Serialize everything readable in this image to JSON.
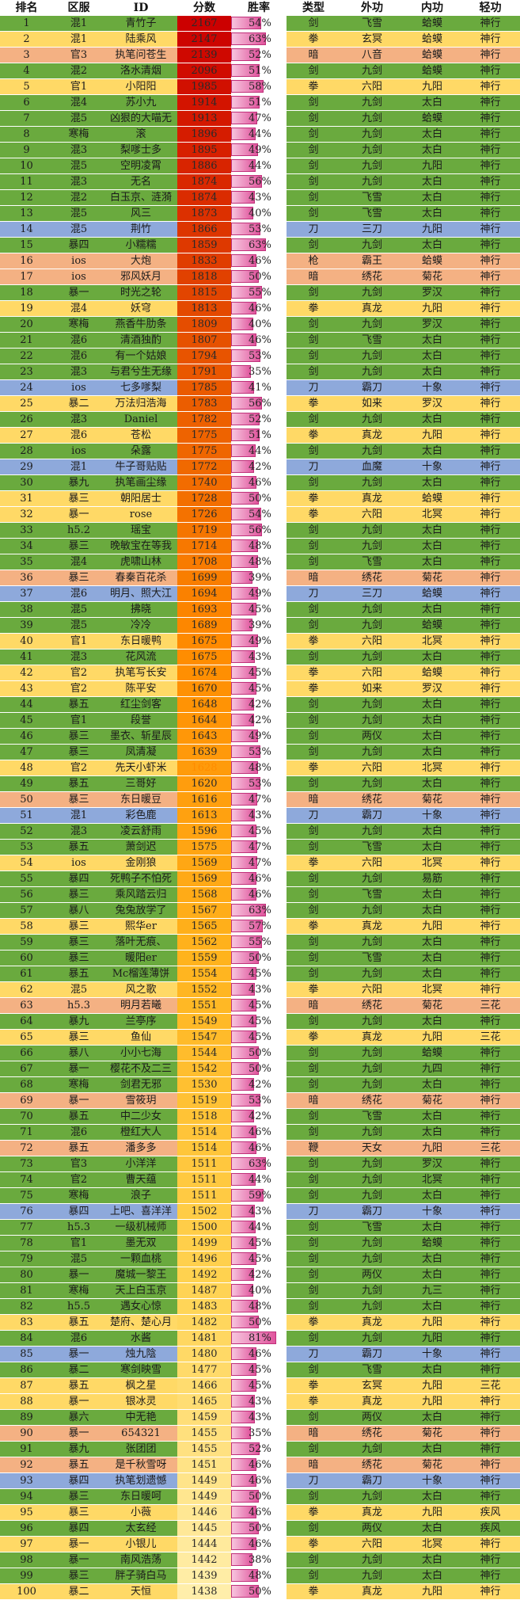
{
  "headers": [
    "排名",
    "区服",
    "ID",
    "分数",
    "胜率",
    "类型",
    "外功",
    "内功",
    "轻功"
  ],
  "rows": [
    [
      "1",
      "混1",
      "青竹子",
      "2167",
      "54%",
      "剑",
      "飞雪",
      "蛤蟆",
      "神行",
      "g"
    ],
    [
      "2",
      "混1",
      "陆乘风",
      "2147",
      "63%",
      "拳",
      "玄冥",
      "蛤蟆",
      "神行",
      "y"
    ],
    [
      "3",
      "官3",
      "执笔问苍生",
      "2139",
      "52%",
      "暗",
      "八音",
      "蛤蟆",
      "神行",
      "s"
    ],
    [
      "4",
      "混2",
      "洛水清烟",
      "2096",
      "51%",
      "剑",
      "九剑",
      "蛤蟆",
      "神行",
      "g"
    ],
    [
      "5",
      "官1",
      "小阳阳",
      "1985",
      "58%",
      "拳",
      "六阳",
      "九阳",
      "神行",
      "y"
    ],
    [
      "6",
      "混4",
      "苏小九",
      "1914",
      "51%",
      "剑",
      "九剑",
      "太白",
      "神行",
      "g"
    ],
    [
      "7",
      "混5",
      "凶狠的大喵无",
      "1913",
      "47%",
      "剑",
      "九剑",
      "蛤蟆",
      "神行",
      "g"
    ],
    [
      "8",
      "寒梅",
      "滚",
      "1896",
      "44%",
      "剑",
      "九剑",
      "太白",
      "神行",
      "g"
    ],
    [
      "9",
      "混3",
      "梨嗲士多",
      "1895",
      "49%",
      "剑",
      "九剑",
      "太白",
      "神行",
      "g"
    ],
    [
      "10",
      "混5",
      "空明凌霄",
      "1886",
      "44%",
      "剑",
      "九剑",
      "九阳",
      "神行",
      "g"
    ],
    [
      "11",
      "混3",
      "无名",
      "1874",
      "56%",
      "剑",
      "九剑",
      "太白",
      "神行",
      "g"
    ],
    [
      "12",
      "混2",
      "白玉京、涟漪",
      "1874",
      "43%",
      "剑",
      "飞雪",
      "太白",
      "神行",
      "g"
    ],
    [
      "13",
      "混5",
      "风三",
      "1873",
      "40%",
      "剑",
      "飞雪",
      "太白",
      "神行",
      "g"
    ],
    [
      "14",
      "混5",
      "荆竹",
      "1866",
      "53%",
      "刀",
      "三刀",
      "九阳",
      "神行",
      "b"
    ],
    [
      "15",
      "暴四",
      "小糯糯",
      "1859",
      "63%",
      "剑",
      "九剑",
      "太白",
      "神行",
      "g"
    ],
    [
      "16",
      "ios",
      "大炮",
      "1833",
      "46%",
      "枪",
      "霸王",
      "蛤蟆",
      "神行",
      "s"
    ],
    [
      "17",
      "ios",
      "邪风妖月",
      "1818",
      "50%",
      "暗",
      "绣花",
      "菊花",
      "神行",
      "s"
    ],
    [
      "18",
      "暴一",
      "时光之轮",
      "1815",
      "55%",
      "剑",
      "九剑",
      "罗汉",
      "神行",
      "g"
    ],
    [
      "19",
      "混4",
      "妖穹",
      "1813",
      "46%",
      "拳",
      "真龙",
      "九阳",
      "神行",
      "y"
    ],
    [
      "20",
      "寒梅",
      "燕香牛肋条",
      "1809",
      "40%",
      "剑",
      "九剑",
      "罗汉",
      "神行",
      "g"
    ],
    [
      "21",
      "混6",
      "清酒独酌",
      "1807",
      "46%",
      "剑",
      "飞雪",
      "太白",
      "神行",
      "g"
    ],
    [
      "22",
      "混6",
      "有一个姑娘",
      "1794",
      "53%",
      "剑",
      "九剑",
      "太白",
      "神行",
      "g"
    ],
    [
      "23",
      "混3",
      "与君兮生无缘",
      "1791",
      "35%",
      "剑",
      "九剑",
      "太白",
      "神行",
      "g"
    ],
    [
      "24",
      "ios",
      "七多嗲梨",
      "1785",
      "41%",
      "刀",
      "霸刀",
      "十象",
      "神行",
      "b"
    ],
    [
      "25",
      "暴二",
      "万法归浩海",
      "1783",
      "56%",
      "拳",
      "如来",
      "罗汉",
      "神行",
      "y"
    ],
    [
      "26",
      "混3",
      "Daniel",
      "1782",
      "52%",
      "剑",
      "九剑",
      "太白",
      "神行",
      "g"
    ],
    [
      "27",
      "混6",
      "苍松",
      "1775",
      "51%",
      "拳",
      "真龙",
      "九阳",
      "神行",
      "y"
    ],
    [
      "28",
      "ios",
      "朵露",
      "1775",
      "44%",
      "剑",
      "九剑",
      "太白",
      "神行",
      "g"
    ],
    [
      "29",
      "混1",
      "牛子哥贴贴",
      "1772",
      "42%",
      "刀",
      "血魔",
      "十象",
      "神行",
      "b"
    ],
    [
      "30",
      "暴九",
      "执笔画尘缘",
      "1740",
      "46%",
      "剑",
      "九剑",
      "太白",
      "神行",
      "g"
    ],
    [
      "31",
      "暴三",
      "朝阳居士",
      "1728",
      "50%",
      "拳",
      "真龙",
      "蛤蟆",
      "神行",
      "y"
    ],
    [
      "32",
      "暴一",
      "rose",
      "1726",
      "54%",
      "拳",
      "六阳",
      "北冥",
      "神行",
      "y"
    ],
    [
      "33",
      "h5.2",
      "瑶宝",
      "1719",
      "56%",
      "剑",
      "九剑",
      "太白",
      "神行",
      "g"
    ],
    [
      "34",
      "暴三",
      "晚敏宝在等我",
      "1714",
      "48%",
      "剑",
      "九剑",
      "太白",
      "神行",
      "g"
    ],
    [
      "35",
      "混4",
      "虎啸山林",
      "1708",
      "48%",
      "剑",
      "飞雪",
      "太白",
      "神行",
      "g"
    ],
    [
      "36",
      "暴三",
      "春秦百花杀",
      "1699",
      "39%",
      "暗",
      "绣花",
      "菊花",
      "神行",
      "s"
    ],
    [
      "37",
      "混6",
      "明月、照大江",
      "1694",
      "49%",
      "刀",
      "三刀",
      "蛤蟆",
      "神行",
      "b"
    ],
    [
      "38",
      "混5",
      "拂晓",
      "1693",
      "45%",
      "剑",
      "九剑",
      "太白",
      "神行",
      "g"
    ],
    [
      "39",
      "混5",
      "冷冷",
      "1689",
      "39%",
      "剑",
      "九剑",
      "蛤蟆",
      "神行",
      "g"
    ],
    [
      "40",
      "官1",
      "东日暖鸭",
      "1675",
      "49%",
      "拳",
      "六阳",
      "北冥",
      "神行",
      "y"
    ],
    [
      "41",
      "混3",
      "花风流",
      "1675",
      "43%",
      "剑",
      "九剑",
      "太白",
      "神行",
      "g"
    ],
    [
      "42",
      "官2",
      "执笔写长安",
      "1674",
      "45%",
      "拳",
      "六阳",
      "蛤蟆",
      "神行",
      "y"
    ],
    [
      "43",
      "官2",
      "陈平安",
      "1670",
      "45%",
      "拳",
      "如来",
      "罗汉",
      "神行",
      "y"
    ],
    [
      "44",
      "暴五",
      "红尘剑客",
      "1648",
      "42%",
      "剑",
      "九剑",
      "太白",
      "神行",
      "g"
    ],
    [
      "45",
      "官1",
      "段誉",
      "1644",
      "42%",
      "剑",
      "九剑",
      "太白",
      "神行",
      "g"
    ],
    [
      "46",
      "暴三",
      "墨衣、斩星辰",
      "1643",
      "49%",
      "剑",
      "两仪",
      "太白",
      "神行",
      "g"
    ],
    [
      "47",
      "暴三",
      "凤清凝",
      "1639",
      "53%",
      "剑",
      "九剑",
      "太白",
      "神行",
      "g"
    ],
    [
      "48",
      "官2",
      "先天小虾米",
      "1628",
      "48%",
      "拳",
      "六阳",
      "北冥",
      "神行",
      "y"
    ],
    [
      "49",
      "暴五",
      "三哥好",
      "1620",
      "53%",
      "剑",
      "九剑",
      "太白",
      "神行",
      "g"
    ],
    [
      "50",
      "暴三",
      "东日暖豆",
      "1616",
      "47%",
      "暗",
      "绣花",
      "菊花",
      "神行",
      "s"
    ],
    [
      "51",
      "混1",
      "彩色鹿",
      "1613",
      "43%",
      "刀",
      "霸刀",
      "十象",
      "神行",
      "b"
    ],
    [
      "52",
      "混3",
      "凌云舒雨",
      "1596",
      "45%",
      "剑",
      "九剑",
      "太白",
      "神行",
      "g"
    ],
    [
      "53",
      "暴五",
      "萧剑迟",
      "1575",
      "47%",
      "剑",
      "飞雪",
      "太白",
      "神行",
      "g"
    ],
    [
      "54",
      "ios",
      "金刚狼",
      "1569",
      "47%",
      "拳",
      "六阳",
      "北冥",
      "神行",
      "y"
    ],
    [
      "55",
      "暴四",
      "死鸭子不怕死",
      "1569",
      "46%",
      "剑",
      "九剑",
      "易筋",
      "神行",
      "g"
    ],
    [
      "56",
      "暴三",
      "乘风踏云归",
      "1568",
      "46%",
      "剑",
      "飞雪",
      "太白",
      "神行",
      "g"
    ],
    [
      "57",
      "暴八",
      "兔兔放学了",
      "1567",
      "63%",
      "剑",
      "九剑",
      "太白",
      "神行",
      "g"
    ],
    [
      "58",
      "暴三",
      "熙华er",
      "1565",
      "57%",
      "拳",
      "真龙",
      "九阳",
      "神行",
      "y"
    ],
    [
      "59",
      "暴三",
      "落叶无痕、",
      "1562",
      "55%",
      "剑",
      "九剑",
      "太白",
      "神行",
      "g"
    ],
    [
      "60",
      "暴三",
      "暖阳er",
      "1559",
      "50%",
      "剑",
      "飞雪",
      "太白",
      "神行",
      "g"
    ],
    [
      "61",
      "暴五",
      "Mc榴莲薄饼",
      "1554",
      "45%",
      "剑",
      "九剑",
      "太白",
      "神行",
      "g"
    ],
    [
      "62",
      "混5",
      "风之歌",
      "1552",
      "43%",
      "拳",
      "六阳",
      "北冥",
      "神行",
      "y"
    ],
    [
      "63",
      "h5.3",
      "明月若曦",
      "1551",
      "45%",
      "暗",
      "绣花",
      "菊花",
      "三花",
      "s"
    ],
    [
      "64",
      "暴九",
      "兰亭序",
      "1549",
      "45%",
      "剑",
      "九剑",
      "太白",
      "神行",
      "g"
    ],
    [
      "65",
      "暴三",
      "鱼仙",
      "1547",
      "45%",
      "拳",
      "真龙",
      "九阳",
      "三花",
      "y"
    ],
    [
      "66",
      "暴八",
      "小小七海",
      "1544",
      "50%",
      "剑",
      "九剑",
      "蛤蟆",
      "神行",
      "g"
    ],
    [
      "67",
      "暴一",
      "樱花不及二三",
      "1542",
      "50%",
      "剑",
      "九剑",
      "九四",
      "神行",
      "g"
    ],
    [
      "68",
      "寒梅",
      "剑君无邪",
      "1530",
      "42%",
      "剑",
      "九剑",
      "太白",
      "神行",
      "g"
    ],
    [
      "69",
      "暴一",
      "雪筱玥",
      "1519",
      "53%",
      "暗",
      "绣花",
      "菊花",
      "神行",
      "s"
    ],
    [
      "70",
      "暴五",
      "中二少女",
      "1518",
      "42%",
      "剑",
      "飞雪",
      "太白",
      "神行",
      "g"
    ],
    [
      "71",
      "混6",
      "橙红大人",
      "1514",
      "46%",
      "剑",
      "九剑",
      "太白",
      "神行",
      "g"
    ],
    [
      "72",
      "暴五",
      "潘多多",
      "1514",
      "46%",
      "鞭",
      "天女",
      "九阳",
      "三花",
      "s"
    ],
    [
      "73",
      "官3",
      "小洋洋",
      "1511",
      "63%",
      "剑",
      "九剑",
      "罗汉",
      "神行",
      "g"
    ],
    [
      "74",
      "官2",
      "曹天蕴",
      "1511",
      "44%",
      "剑",
      "九剑",
      "北冥",
      "神行",
      "g"
    ],
    [
      "75",
      "寒梅",
      "浪子",
      "1511",
      "59%",
      "剑",
      "九剑",
      "太白",
      "神行",
      "g"
    ],
    [
      "76",
      "暴四",
      "上吧、喜洋洋",
      "1502",
      "43%",
      "刀",
      "霸刀",
      "十象",
      "神行",
      "b"
    ],
    [
      "77",
      "h5.3",
      "一级机械师",
      "1500",
      "44%",
      "剑",
      "飞雪",
      "太白",
      "神行",
      "g"
    ],
    [
      "78",
      "官1",
      "墨无双",
      "1499",
      "45%",
      "剑",
      "九剑",
      "蛤蟆",
      "神行",
      "g"
    ],
    [
      "79",
      "混5",
      "一颗血桃",
      "1496",
      "45%",
      "剑",
      "九剑",
      "太白",
      "神行",
      "g"
    ],
    [
      "80",
      "暴一",
      "魔城一黎王",
      "1492",
      "42%",
      "剑",
      "两仪",
      "太白",
      "神行",
      "g"
    ],
    [
      "81",
      "寒梅",
      "天上白玉京",
      "1487",
      "40%",
      "剑",
      "九剑",
      "九三",
      "神行",
      "g"
    ],
    [
      "82",
      "h5.5",
      "遇女心惊",
      "1483",
      "48%",
      "剑",
      "九剑",
      "太白",
      "神行",
      "g"
    ],
    [
      "83",
      "暴五",
      "楚府、楚心月",
      "1482",
      "50%",
      "拳",
      "真龙",
      "九阳",
      "神行",
      "y"
    ],
    [
      "84",
      "混6",
      "水酱",
      "1481",
      "81%",
      "剑",
      "九剑",
      "九阳",
      "神行",
      "g"
    ],
    [
      "85",
      "暴一",
      "烛九陰",
      "1480",
      "46%",
      "刀",
      "霸刀",
      "十象",
      "神行",
      "b"
    ],
    [
      "86",
      "暴二",
      "寒剑映雪",
      "1477",
      "45%",
      "剑",
      "飞雪",
      "太白",
      "神行",
      "g"
    ],
    [
      "87",
      "暴五",
      "枫之星",
      "1466",
      "45%",
      "拳",
      "玄冥",
      "九阳",
      "三花",
      "y"
    ],
    [
      "88",
      "暴一",
      "银冰灵",
      "1465",
      "43%",
      "拳",
      "真龙",
      "九阳",
      "神行",
      "y"
    ],
    [
      "89",
      "暴六",
      "中无艳",
      "1459",
      "43%",
      "剑",
      "两仪",
      "太白",
      "神行",
      "g"
    ],
    [
      "90",
      "暴一",
      "654321",
      "1455",
      "35%",
      "暗",
      "绣花",
      "菊花",
      "神行",
      "s"
    ],
    [
      "91",
      "暴九",
      "张团团",
      "1455",
      "52%",
      "剑",
      "九剑",
      "太白",
      "神行",
      "g"
    ],
    [
      "92",
      "暴五",
      "是千秋雪呀",
      "1451",
      "46%",
      "暗",
      "绣花",
      "菊花",
      "神行",
      "s"
    ],
    [
      "93",
      "暴四",
      "执笔划遗憾",
      "1449",
      "46%",
      "刀",
      "霸刀",
      "十象",
      "神行",
      "b"
    ],
    [
      "94",
      "暴三",
      "东日暖呵",
      "1449",
      "50%",
      "剑",
      "九剑",
      "太白",
      "神行",
      "g"
    ],
    [
      "95",
      "暴三",
      "小薇",
      "1446",
      "46%",
      "拳",
      "真龙",
      "九阳",
      "疾风",
      "y"
    ],
    [
      "96",
      "暴四",
      "太玄经",
      "1445",
      "50%",
      "剑",
      "两仪",
      "太白",
      "疾风",
      "g"
    ],
    [
      "97",
      "暴一",
      "小银儿",
      "1444",
      "46%",
      "拳",
      "六阳",
      "北冥",
      "神行",
      "y"
    ],
    [
      "98",
      "暴一",
      "南风浩荡",
      "1442",
      "38%",
      "剑",
      "九剑",
      "太白",
      "神行",
      "g"
    ],
    [
      "99",
      "暴三",
      "胖子骑白马",
      "1439",
      "48%",
      "剑",
      "九剑",
      "太白",
      "神行",
      "g"
    ],
    [
      "100",
      "暴二",
      "天恒",
      "1438",
      "50%",
      "拳",
      "真龙",
      "九阳",
      "神行",
      "y"
    ]
  ]
}
